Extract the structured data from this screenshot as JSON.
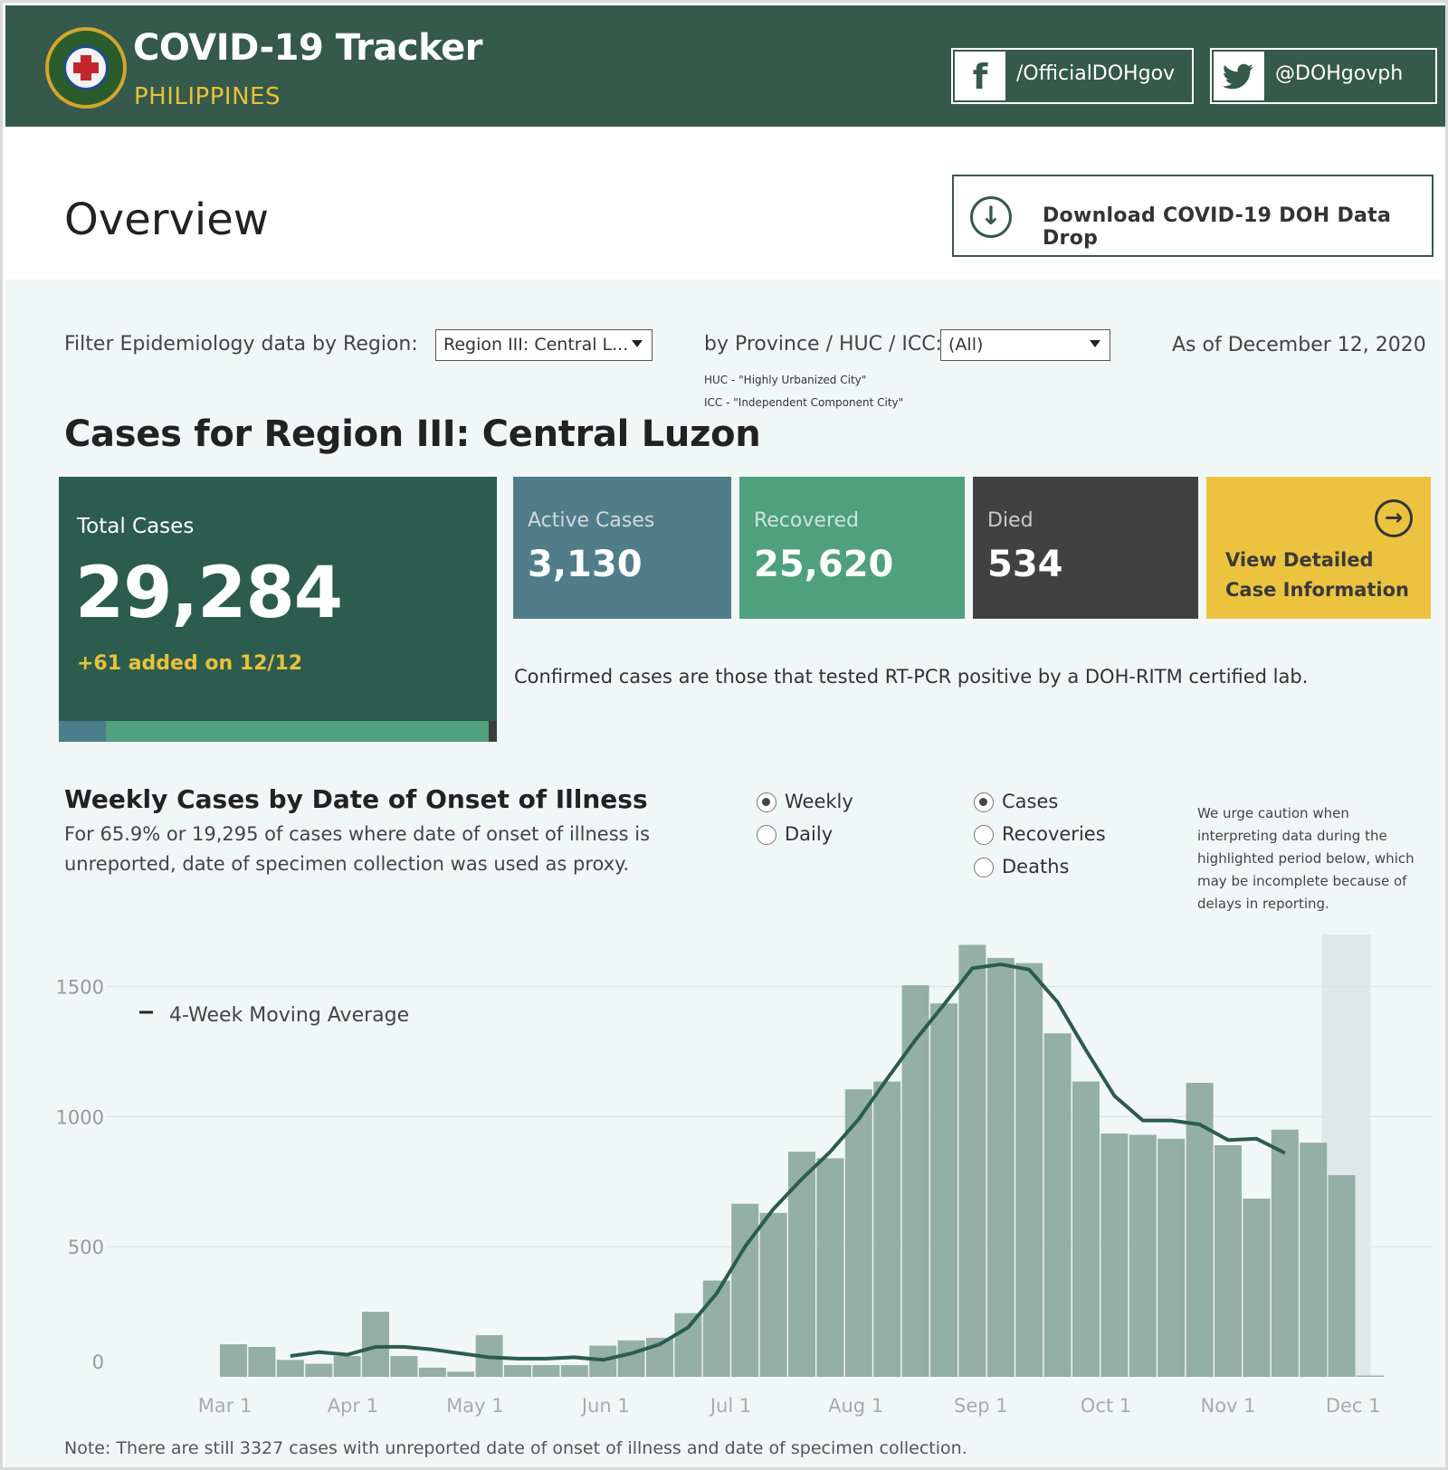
{
  "header": {
    "title": "COVID-19 Tracker",
    "subtitle": "PHILIPPINES",
    "facebook": {
      "icon": "facebook-icon",
      "handle": "/OfficialDOHgov"
    },
    "twitter": {
      "icon": "twitter-icon",
      "handle": "@DOHgovph"
    }
  },
  "overview": {
    "title": "Overview",
    "download_label": "Download COVID-19 DOH Data Drop"
  },
  "filters": {
    "region_label": "Filter Epidemiology data by Region:",
    "region_value": "Region III: Central L...",
    "province_label": "by Province / HUC / ICC:",
    "province_value": "(All)",
    "huc_note": "HUC - \"Highly Urbanized City\"",
    "icc_note": "ICC - \"Independent Component City\"",
    "as_of": "As of December 12, 2020"
  },
  "cases": {
    "heading": "Cases for Region III: Central Luzon",
    "total_label": "Total Cases",
    "total_value": "29,284",
    "added": "+61 added on 12/12",
    "active_label": "Active Cases",
    "active_value": "3,130",
    "recovered_label": "Recovered",
    "recovered_value": "25,620",
    "died_label": "Died",
    "died_value": "534",
    "detail_line1": "View Detailed",
    "detail_line2": "Case Information",
    "confirmed_note": "Confirmed cases are those that tested RT-PCR positive by a DOH-RITM certified lab."
  },
  "weekly": {
    "title": "Weekly Cases by Date of Onset of Illness",
    "desc_line1": "For 65.9% or 19,295 of cases where date of onset of illness is",
    "desc_line2": "unreported, date of specimen collection was used as proxy.",
    "radio_period": [
      {
        "label": "Weekly",
        "selected": true
      },
      {
        "label": "Daily",
        "selected": false
      }
    ],
    "radio_metric": [
      {
        "label": "Cases",
        "selected": true
      },
      {
        "label": "Recoveries",
        "selected": false
      },
      {
        "label": "Deaths",
        "selected": false
      }
    ],
    "caution_lines": [
      "We urge caution when",
      "interpreting data during the",
      "highlighted period below, which",
      "may be incomplete because of",
      "delays in reporting."
    ]
  },
  "colors": {
    "header_bg": "#35594a",
    "accent_yellow": "#e8c239",
    "active": "#507d89",
    "recovered": "#4fa07e",
    "died": "#414141",
    "bar": "#94b0a6",
    "line": "#2b5c4e"
  },
  "chart_data": {
    "type": "bar",
    "ylim": [
      0,
      1700
    ],
    "yticks": [
      0,
      500,
      1000,
      1500
    ],
    "x_tick_labels": [
      "Mar 1",
      "Apr 1",
      "May 1",
      "Jun 1",
      "Jul 1",
      "Aug 1",
      "Sep 1",
      "Oct 1",
      "Nov 1",
      "Dec 1"
    ],
    "x_tick_positions": [
      -0.3,
      4.2,
      8.5,
      13.1,
      17.5,
      21.9,
      26.3,
      30.7,
      35.0,
      39.4
    ],
    "values": [
      125,
      115,
      65,
      50,
      80,
      250,
      80,
      35,
      20,
      160,
      45,
      45,
      45,
      120,
      140,
      150,
      245,
      370,
      665,
      630,
      865,
      840,
      1105,
      1135,
      1505,
      1435,
      1660,
      1610,
      1590,
      1320,
      1135,
      935,
      930,
      915,
      1130,
      890,
      685,
      950,
      900,
      775,
      5
    ],
    "series": [
      {
        "name": "4-Week Moving Average",
        "start_index": 2,
        "values": [
          80,
          95,
          85,
          115,
          115,
          105,
          90,
          75,
          70,
          70,
          75,
          65,
          90,
          125,
          190,
          320,
          500,
          645,
          760,
          865,
          990,
          1145,
          1295,
          1430,
          1570,
          1585,
          1565,
          1440,
          1255,
          1080,
          985,
          985,
          970,
          910,
          915,
          860
        ]
      }
    ],
    "highlight_start_index": 39,
    "legend_label": "4-Week Moving Average"
  },
  "footnote": "Note: There are still 3327 cases with unreported date of onset of illness and date of specimen collection."
}
